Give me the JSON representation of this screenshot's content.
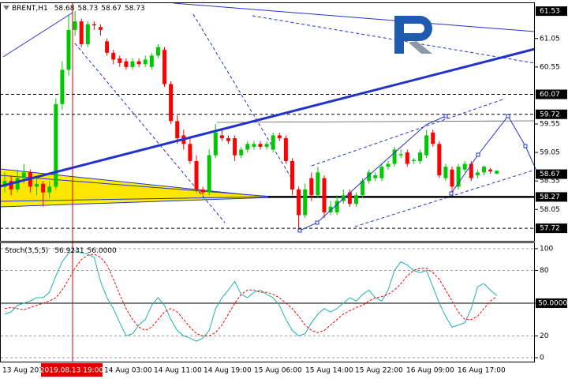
{
  "chart_data": [
    {
      "type": "candlestick",
      "title": "BRENT,H1",
      "readout": [
        58.68,
        58.73,
        58.67,
        58.73
      ],
      "up_color": "#00c800",
      "down_color": "#ff0000",
      "open": [
        58.45,
        58.55,
        58.4,
        58.6,
        58.7,
        58.45,
        58.5,
        58.35,
        58.45,
        59.9,
        60.5,
        61.2,
        61.35,
        60.95,
        61.3,
        61.25,
        61.0,
        60.8,
        60.7,
        60.65,
        60.55,
        60.65,
        60.6,
        60.55,
        60.75,
        60.85,
        60.25,
        59.6,
        59.35,
        59.2,
        58.9,
        58.4,
        58.35,
        59.0,
        59.35,
        59.3,
        59.3,
        59.0,
        59.1,
        59.15,
        59.2,
        59.15,
        59.1,
        59.35,
        59.3,
        58.9,
        58.4,
        57.95,
        58.6,
        58.3,
        58.6,
        58.0,
        58.0,
        58.2,
        58.35,
        58.15,
        58.3,
        58.55,
        58.6,
        58.6,
        58.8,
        58.85,
        59.0,
        59.05,
        58.9,
        58.9,
        59.0,
        59.4,
        59.2,
        58.6,
        58.75,
        58.45,
        58.75,
        58.85,
        58.65,
        58.7,
        58.75,
        58.68
      ],
      "high": [
        58.7,
        58.65,
        58.75,
        58.85,
        58.75,
        58.6,
        58.55,
        58.55,
        60.0,
        60.65,
        61.45,
        61.53,
        61.4,
        61.35,
        61.35,
        61.3,
        61.05,
        60.85,
        60.75,
        60.7,
        60.7,
        60.7,
        60.75,
        60.8,
        60.95,
        60.9,
        60.3,
        59.7,
        59.45,
        59.3,
        59.0,
        58.45,
        59.1,
        59.55,
        59.45,
        59.35,
        59.35,
        59.15,
        59.25,
        59.25,
        59.25,
        59.25,
        59.4,
        59.4,
        59.35,
        58.95,
        58.45,
        58.5,
        58.7,
        58.8,
        58.65,
        58.2,
        58.3,
        58.4,
        58.4,
        58.35,
        58.6,
        58.75,
        58.7,
        58.85,
        58.9,
        59.15,
        59.1,
        59.1,
        58.95,
        59.1,
        59.45,
        59.45,
        59.25,
        58.85,
        58.8,
        58.85,
        58.9,
        58.9,
        58.75,
        58.82,
        58.78,
        58.73
      ],
      "low": [
        58.35,
        58.3,
        58.35,
        58.5,
        58.35,
        58.3,
        58.1,
        58.25,
        58.4,
        59.8,
        60.4,
        61.1,
        60.9,
        60.9,
        61.2,
        61.1,
        60.75,
        60.6,
        60.55,
        60.5,
        60.5,
        60.55,
        60.55,
        60.5,
        60.7,
        60.2,
        59.55,
        59.2,
        59.1,
        58.85,
        58.35,
        58.3,
        58.3,
        58.95,
        59.25,
        59.2,
        58.9,
        58.95,
        59.05,
        59.1,
        59.1,
        59.1,
        59.05,
        59.25,
        58.85,
        58.3,
        57.72,
        57.9,
        58.2,
        58.25,
        57.9,
        57.95,
        57.95,
        58.15,
        58.1,
        58.1,
        58.25,
        58.5,
        58.55,
        58.55,
        58.75,
        58.8,
        58.95,
        58.8,
        58.85,
        58.85,
        58.95,
        59.15,
        58.6,
        58.55,
        58.3,
        58.4,
        58.7,
        58.55,
        58.6,
        58.65,
        58.68,
        58.67
      ],
      "close": [
        58.55,
        58.4,
        58.6,
        58.7,
        58.45,
        58.5,
        58.35,
        58.45,
        59.9,
        60.5,
        61.2,
        61.35,
        60.95,
        61.3,
        61.28,
        61.2,
        60.8,
        60.68,
        60.62,
        60.55,
        60.65,
        60.6,
        60.68,
        60.75,
        60.9,
        60.25,
        59.6,
        59.3,
        59.2,
        58.9,
        58.4,
        58.35,
        59.0,
        59.4,
        59.3,
        59.25,
        59.0,
        59.1,
        59.2,
        59.2,
        59.15,
        59.2,
        59.35,
        59.3,
        58.9,
        58.4,
        57.95,
        58.4,
        58.3,
        58.7,
        58.0,
        58.1,
        58.2,
        58.3,
        58.15,
        58.3,
        58.55,
        58.7,
        58.65,
        58.8,
        58.85,
        59.1,
        59.02,
        58.85,
        58.92,
        59.05,
        59.35,
        59.2,
        58.65,
        58.8,
        58.45,
        58.8,
        58.85,
        58.6,
        58.7,
        58.8,
        58.72,
        58.73
      ],
      "ylim": [
        57.5,
        61.67
      ],
      "yticks": [
        61.05,
        60.55,
        59.55,
        59.05,
        58.55,
        58.05
      ],
      "levels": [
        61.53,
        60.07,
        59.72,
        58.67,
        58.27,
        57.72
      ],
      "level_styles": [
        "none",
        "dash",
        "dash",
        "none",
        "solid",
        "dash"
      ],
      "xtick_labels": [
        "13 Aug 2019",
        "14 Aug 03:00",
        "14 Aug 11:00",
        "14 Aug 19:00",
        "15 Aug 06:00",
        "15 Aug 14:00",
        "15 Aug 22:00",
        "16 Aug 09:00",
        "16 Aug 17:00"
      ],
      "crosshair_label": "2019.08.13 19:00"
    },
    {
      "type": "line",
      "title": "Stoch(3,5,5)",
      "readout": [
        56.9231,
        {
          "value": 56,
          "label": "56.0000"
        }
      ],
      "series": [
        {
          "color": "#20b2aa",
          "values": [
            40,
            42,
            48,
            50,
            52,
            55,
            55,
            60,
            75,
            88,
            96,
            98,
            96,
            95,
            92,
            70,
            55,
            45,
            32,
            20,
            22,
            30,
            35,
            48,
            55,
            48,
            35,
            25,
            20,
            18,
            15,
            18,
            25,
            45,
            55,
            62,
            70,
            58,
            55,
            60,
            62,
            58,
            55,
            48,
            35,
            25,
            20,
            22,
            32,
            40,
            45,
            42,
            45,
            50,
            55,
            52,
            58,
            62,
            55,
            52,
            62,
            80,
            88,
            85,
            80,
            78,
            80,
            65,
            50,
            38,
            28,
            30,
            32,
            45,
            65,
            68,
            62,
            56.9231
          ]
        },
        {
          "color": "#ff0000",
          "dash": true,
          "values": [
            45,
            46,
            45,
            44,
            46,
            48,
            50,
            52,
            55,
            62,
            72,
            82,
            90,
            94,
            95,
            92,
            85,
            72,
            58,
            45,
            35,
            28,
            25,
            28,
            35,
            42,
            45,
            42,
            35,
            28,
            22,
            20,
            20,
            23,
            30,
            40,
            50,
            58,
            62,
            62,
            60,
            60,
            58,
            55,
            50,
            45,
            38,
            30,
            25,
            23,
            25,
            30,
            35,
            40,
            43,
            46,
            48,
            52,
            55,
            56,
            58,
            62,
            68,
            75,
            80,
            82,
            82,
            78,
            72,
            62,
            52,
            42,
            35,
            35,
            38,
            45,
            52,
            56
          ]
        }
      ],
      "ylim": [
        -3.6,
        105
      ],
      "yticks": [
        100,
        80,
        {
          "value": 50,
          "label": "50.0000"
        },
        20,
        0
      ],
      "grid": true
    }
  ]
}
